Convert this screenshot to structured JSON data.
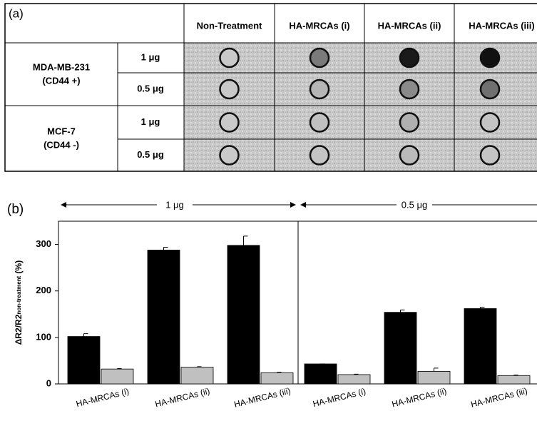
{
  "table": {
    "corner": "(a)",
    "header": [
      "Non-Treatment",
      "HA-MRCAs (i)",
      "HA-MRCAs (ii)",
      "HA-MRCAs (iii)"
    ],
    "groups": [
      {
        "label": [
          "MDA-MB-231",
          "(CD44 +)"
        ],
        "doses": [
          "1 μg",
          "0.5 μg"
        ]
      },
      {
        "label": [
          "MCF-7",
          "(CD44 -)"
        ],
        "doses": [
          "1 μg",
          "0.5 μg"
        ]
      }
    ]
  },
  "chart_data": {
    "type": "bar",
    "panel": "(b)",
    "ylabel": "ΔR2/R2",
    "ylabel_sub": "non-treatment",
    "ylabel_suffix": " (%)",
    "groups": [
      "1 μg",
      "0.5 μg"
    ],
    "categories": [
      "HA-MRCAs (i)",
      "HA-MRCAs (ii)",
      "HA-MRCAs (iii)",
      "HA-MRCAs (i)",
      "HA-MRCAs (ii)",
      "HA-MRCAs (iii)"
    ],
    "series": [
      {
        "color": "#000000",
        "values": [
          102,
          288,
          298,
          43,
          154,
          162
        ],
        "errors": [
          6,
          6,
          20,
          0,
          5,
          3
        ]
      },
      {
        "color": "#c0c0c0",
        "values": [
          32,
          36,
          24,
          20,
          27,
          18
        ],
        "errors": [
          1,
          1,
          1,
          1,
          7,
          1
        ]
      }
    ],
    "ylim": [
      0,
      350
    ],
    "yticks": [
      0,
      100,
      200,
      300
    ]
  }
}
